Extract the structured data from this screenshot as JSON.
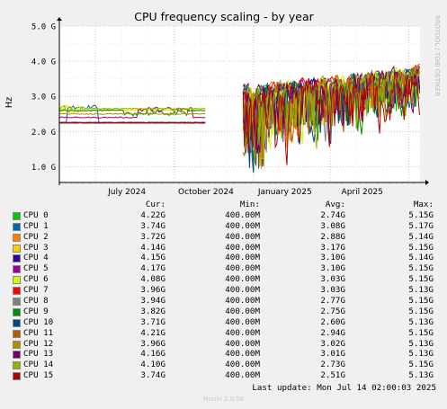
{
  "chart_data": {
    "type": "line",
    "title": "CPU frequency scaling - by year",
    "ylabel": "Hz",
    "watermark": "RRDTOOL / TOBI OETIKER",
    "yticks": [
      "1.0 G",
      "2.0 G",
      "3.0 G",
      "4.0 G",
      "5.0 G"
    ],
    "ylim": [
      0.55,
      5.0
    ],
    "ylim_unit": "GHz",
    "xticks": [
      {
        "label": "July 2024",
        "date": "2024-07-01"
      },
      {
        "label": "October 2024",
        "date": "2024-10-01"
      },
      {
        "label": "January 2025",
        "date": "2025-01-01"
      },
      {
        "label": "April 2025",
        "date": "2025-04-01"
      }
    ],
    "xlim": [
      "2024-05-20",
      "2025-07-14"
    ],
    "gap": [
      "2024-11-07",
      "2024-12-20"
    ],
    "grid": true,
    "header": {
      "cur": "Cur:",
      "min": "Min:",
      "avg": "Avg:",
      "max": "Max:"
    },
    "series": [
      {
        "name": "CPU 0",
        "color": "#00cc00",
        "cur": "4.22G",
        "min": "400.00M",
        "avg": "2.74G",
        "max": "5.15G"
      },
      {
        "name": "CPU 1",
        "color": "#0066b3",
        "cur": "3.74G",
        "min": "400.00M",
        "avg": "3.08G",
        "max": "5.17G"
      },
      {
        "name": "CPU 2",
        "color": "#ff8000",
        "cur": "3.72G",
        "min": "400.00M",
        "avg": "2.88G",
        "max": "5.14G"
      },
      {
        "name": "CPU 3",
        "color": "#ffcc00",
        "cur": "4.14G",
        "min": "400.00M",
        "avg": "3.17G",
        "max": "5.15G"
      },
      {
        "name": "CPU 4",
        "color": "#330099",
        "cur": "4.15G",
        "min": "400.00M",
        "avg": "3.10G",
        "max": "5.14G"
      },
      {
        "name": "CPU 5",
        "color": "#990099",
        "cur": "4.17G",
        "min": "400.00M",
        "avg": "3.10G",
        "max": "5.15G"
      },
      {
        "name": "CPU 6",
        "color": "#ccff00",
        "cur": "4.08G",
        "min": "400.00M",
        "avg": "3.03G",
        "max": "5.15G"
      },
      {
        "name": "CPU 7",
        "color": "#ff0000",
        "cur": "3.96G",
        "min": "400.00M",
        "avg": "3.03G",
        "max": "5.13G"
      },
      {
        "name": "CPU 8",
        "color": "#808080",
        "cur": "3.94G",
        "min": "400.00M",
        "avg": "2.77G",
        "max": "5.15G"
      },
      {
        "name": "CPU 9",
        "color": "#008f00",
        "cur": "3.82G",
        "min": "400.00M",
        "avg": "2.75G",
        "max": "5.15G"
      },
      {
        "name": "CPU 10",
        "color": "#00487d",
        "cur": "3.71G",
        "min": "400.00M",
        "avg": "2.60G",
        "max": "5.13G"
      },
      {
        "name": "CPU 11",
        "color": "#b35a00",
        "cur": "4.21G",
        "min": "400.00M",
        "avg": "2.94G",
        "max": "5.15G"
      },
      {
        "name": "CPU 12",
        "color": "#b38f00",
        "cur": "3.96G",
        "min": "400.00M",
        "avg": "3.02G",
        "max": "5.13G"
      },
      {
        "name": "CPU 13",
        "color": "#6b006b",
        "cur": "4.16G",
        "min": "400.00M",
        "avg": "3.01G",
        "max": "5.13G"
      },
      {
        "name": "CPU 14",
        "color": "#8fb300",
        "cur": "4.10G",
        "min": "400.00M",
        "avg": "2.73G",
        "max": "5.15G"
      },
      {
        "name": "CPU 15",
        "color": "#b30000",
        "cur": "3.74G",
        "min": "400.00M",
        "avg": "2.51G",
        "max": "5.13G"
      }
    ]
  },
  "last_update": "Last update: Mon Jul 14 02:00:03 2025",
  "footer": "Munin 2.0.56"
}
